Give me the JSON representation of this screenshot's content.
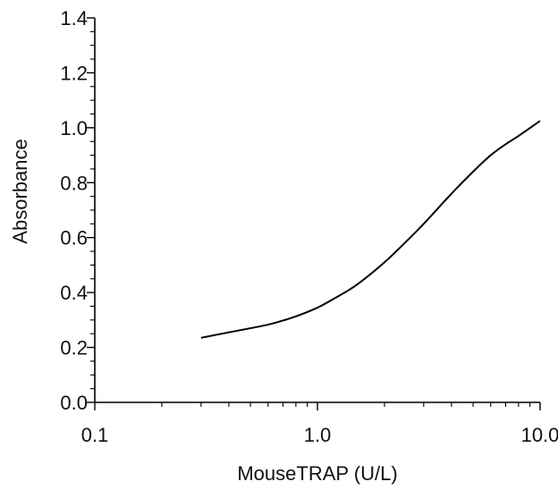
{
  "chart_data": {
    "type": "line",
    "xlabel": "MouseTRAP (U/L)",
    "ylabel": "Absorbance",
    "x_scale": "log",
    "xlim": [
      0.1,
      10.0
    ],
    "ylim": [
      0.0,
      1.4
    ],
    "x_ticks": [
      0.1,
      1.0,
      10.0
    ],
    "x_tick_labels": [
      "0.1",
      "1.0",
      "10.0"
    ],
    "y_ticks": [
      0.0,
      0.2,
      0.4,
      0.6,
      0.8,
      1.0,
      1.2,
      1.4
    ],
    "y_tick_labels": [
      "0.0",
      "0.2",
      "0.4",
      "0.6",
      "0.8",
      "1.0",
      "1.2",
      "1.4"
    ],
    "grid": false,
    "legend": "none",
    "series": [
      {
        "color": "#000000",
        "x": [
          0.3,
          0.4,
          0.5,
          0.6,
          0.7,
          0.8,
          1.0,
          1.2,
          1.5,
          2.0,
          2.5,
          3.0,
          4.0,
          5.0,
          6.0,
          7.0,
          8.0,
          10.0
        ],
        "y": [
          0.235,
          0.255,
          0.27,
          0.283,
          0.298,
          0.313,
          0.345,
          0.38,
          0.428,
          0.51,
          0.585,
          0.65,
          0.76,
          0.84,
          0.9,
          0.94,
          0.97,
          1.025
        ]
      }
    ]
  }
}
